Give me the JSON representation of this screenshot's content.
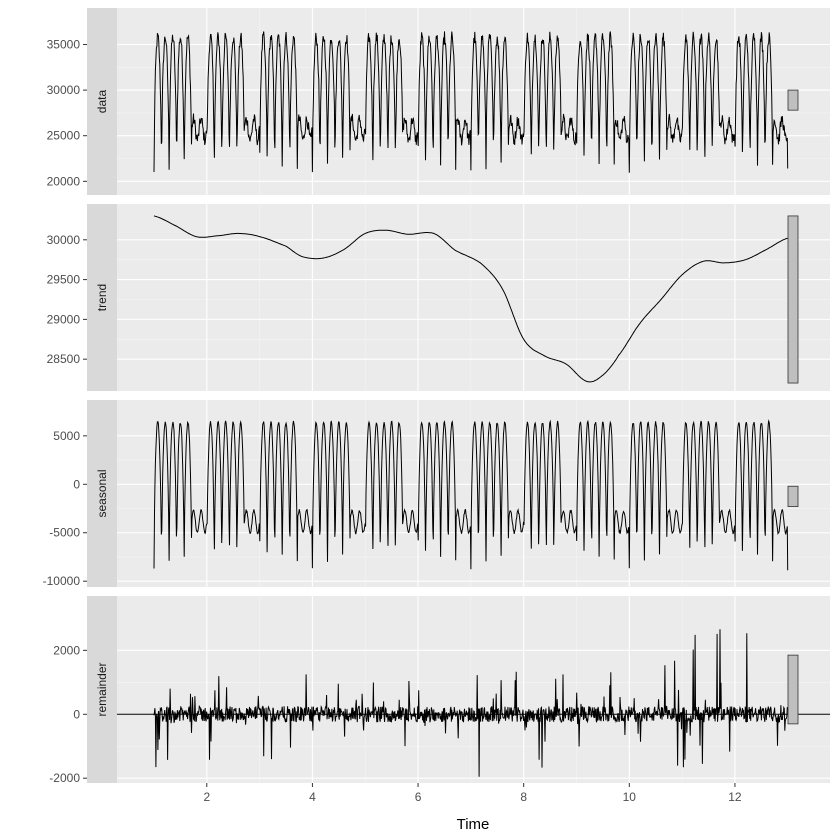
{
  "chart_data": {
    "type": "line",
    "title": "",
    "xlabel": "Time",
    "xlim": [
      0.3,
      13.8
    ],
    "x_ticks": [
      2,
      4,
      6,
      8,
      10,
      12
    ],
    "x_tick_labels": [
      "2",
      "4",
      "6",
      "8",
      "10",
      "12"
    ],
    "grid": true,
    "legend": "none",
    "scale_bar_color": "#bfbfbf",
    "panel_background": "#ebebeb",
    "strip_background": "#d9d9d9",
    "line_color": "#000000",
    "facets": [
      {
        "name": "data",
        "ylim": [
          18500,
          39000
        ],
        "y_ticks": [
          20000,
          25000,
          30000,
          35000
        ],
        "y_tick_labels": [
          "20000",
          "25000",
          "30000",
          "35000"
        ],
        "scale_bar": [
          27800,
          30000
        ],
        "style": "seasonal",
        "seasonal_amplitude": 7500,
        "seasonal_center": -1500,
        "baseline": 29800,
        "noise": 1400
      },
      {
        "name": "trend",
        "ylim": [
          28100,
          30450
        ],
        "y_ticks": [
          28500,
          29000,
          29500,
          30000
        ],
        "y_tick_labels": [
          "28500",
          "29000",
          "29500",
          "30000"
        ],
        "scale_bar": [
          28200,
          30300
        ],
        "style": "trend",
        "x": [
          1.0,
          1.4,
          1.8,
          2.2,
          2.6,
          3.0,
          3.5,
          3.8,
          4.2,
          4.6,
          5.0,
          5.4,
          5.8,
          6.3,
          6.7,
          7.2,
          7.6,
          8.0,
          8.4,
          8.8,
          9.2,
          9.5,
          9.8,
          10.2,
          10.6,
          11.0,
          11.4,
          11.8,
          12.2,
          12.6,
          13.0
        ],
        "y": [
          30300,
          30180,
          30040,
          30050,
          30080,
          30040,
          29920,
          29790,
          29770,
          29880,
          30080,
          30120,
          30070,
          30080,
          29870,
          29700,
          29380,
          28750,
          28540,
          28440,
          28220,
          28300,
          28550,
          28950,
          29250,
          29560,
          29730,
          29710,
          29750,
          29880,
          30020
        ]
      },
      {
        "name": "seasonal",
        "ylim": [
          -10600,
          8700
        ],
        "y_ticks": [
          -10000,
          -5000,
          0,
          5000
        ],
        "y_tick_labels": [
          "-10000",
          "-5000",
          "0",
          "5000"
        ],
        "scale_bar": [
          -2300,
          -200
        ],
        "style": "seasonal",
        "seasonal_amplitude": 7600,
        "seasonal_center": -1200,
        "baseline": 0,
        "noise": 300
      },
      {
        "name": "remainder",
        "ylim": [
          -2150,
          3700
        ],
        "y_ticks": [
          -2000,
          0,
          2000
        ],
        "y_tick_labels": [
          "-2000",
          "0",
          "2000"
        ],
        "scale_bar": [
          -300,
          1850
        ],
        "style": "remainder",
        "zero_line": 0
      }
    ]
  }
}
